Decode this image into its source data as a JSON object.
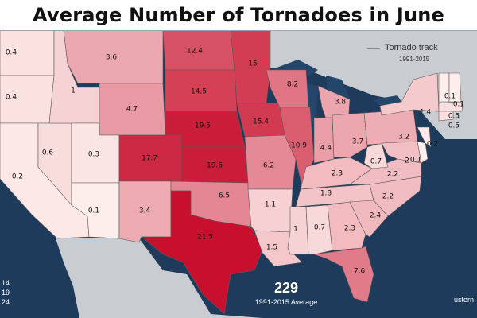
{
  "title": "Average Number of Tornadoes in June",
  "legend": {
    "track_label": "Tornado track",
    "track_years": "1991-2015",
    "scale_ticks": [
      "14",
      "19",
      "24"
    ]
  },
  "total": {
    "value": "229",
    "caption": "1991-2015 Average"
  },
  "credit": "ustorn",
  "colors": {
    "ocean": "#1f3b5c",
    "land": "#c9cdd2",
    "lakes": "#24466b",
    "scale_low": "#fff7f3",
    "scale_high": "#c8102e"
  },
  "states": [
    {
      "id": "WA",
      "value": 0.4,
      "label": "0.4"
    },
    {
      "id": "OR",
      "value": 0.4,
      "label": "0.4"
    },
    {
      "id": "CA",
      "value": 0.2,
      "label": "0.2"
    },
    {
      "id": "NV",
      "value": 0.6,
      "label": "0.6"
    },
    {
      "id": "ID",
      "value": 1,
      "label": "1"
    },
    {
      "id": "MT",
      "value": 3.6,
      "label": "3.6"
    },
    {
      "id": "WY",
      "value": 4.7,
      "label": "4.7"
    },
    {
      "id": "UT",
      "value": 0.3,
      "label": "0.3"
    },
    {
      "id": "AZ",
      "value": 0.1,
      "label": "0.1"
    },
    {
      "id": "CO",
      "value": 17.7,
      "label": "17.7"
    },
    {
      "id": "NM",
      "value": 3.4,
      "label": "3.4"
    },
    {
      "id": "ND",
      "value": 12.4,
      "label": "12.4"
    },
    {
      "id": "SD",
      "value": 14.5,
      "label": "14.5"
    },
    {
      "id": "NE",
      "value": 19.5,
      "label": "19.5"
    },
    {
      "id": "KS",
      "value": 19.6,
      "label": "19.6"
    },
    {
      "id": "OK",
      "value": 6.5,
      "label": "6.5"
    },
    {
      "id": "TX",
      "value": 21.5,
      "label": "21.5"
    },
    {
      "id": "MN",
      "value": 15,
      "label": "15"
    },
    {
      "id": "IA",
      "value": 15.4,
      "label": "15.4"
    },
    {
      "id": "MO",
      "value": 6.2,
      "label": "6.2"
    },
    {
      "id": "AR",
      "value": 1.1,
      "label": "1.1"
    },
    {
      "id": "LA",
      "value": 1.5,
      "label": "1.5"
    },
    {
      "id": "WI",
      "value": 8.2,
      "label": "8.2"
    },
    {
      "id": "IL",
      "value": 10.9,
      "label": "10.9"
    },
    {
      "id": "MI",
      "value": 3.8,
      "label": "3.8"
    },
    {
      "id": "IN",
      "value": 4.4,
      "label": "4.4"
    },
    {
      "id": "OH",
      "value": 3.7,
      "label": "3.7"
    },
    {
      "id": "KY",
      "value": 2.3,
      "label": "2.3"
    },
    {
      "id": "TN",
      "value": 1.8,
      "label": "1.8"
    },
    {
      "id": "MS",
      "value": 1,
      "label": "1"
    },
    {
      "id": "AL",
      "value": 0.7,
      "label": "0.7"
    },
    {
      "id": "GA",
      "value": 2.3,
      "label": "2.3"
    },
    {
      "id": "FL",
      "value": 7.6,
      "label": "7.6"
    },
    {
      "id": "SC",
      "value": 2.4,
      "label": "2.4"
    },
    {
      "id": "NC",
      "value": 2.2,
      "label": "2.2"
    },
    {
      "id": "VA",
      "value": 2.2,
      "label": "2.2"
    },
    {
      "id": "WV",
      "value": 0.7,
      "label": "0.7"
    },
    {
      "id": "PA",
      "value": 3.2,
      "label": "3.2"
    },
    {
      "id": "NY",
      "value": 1.4,
      "label": "1.4"
    },
    {
      "id": "MD",
      "value": 2,
      "label": "2"
    },
    {
      "id": "DE",
      "value": 0.1,
      "label": "0.1"
    },
    {
      "id": "NJ",
      "value": 0.2,
      "label": "0.2"
    },
    {
      "id": "CT",
      "value": 0.5,
      "label": "0.5"
    },
    {
      "id": "MA",
      "value": 0.5,
      "label": "0.5"
    },
    {
      "id": "VT",
      "value": 0.1,
      "label": "0.1"
    },
    {
      "id": "NH",
      "value": 0.1,
      "label": "0.1"
    }
  ]
}
